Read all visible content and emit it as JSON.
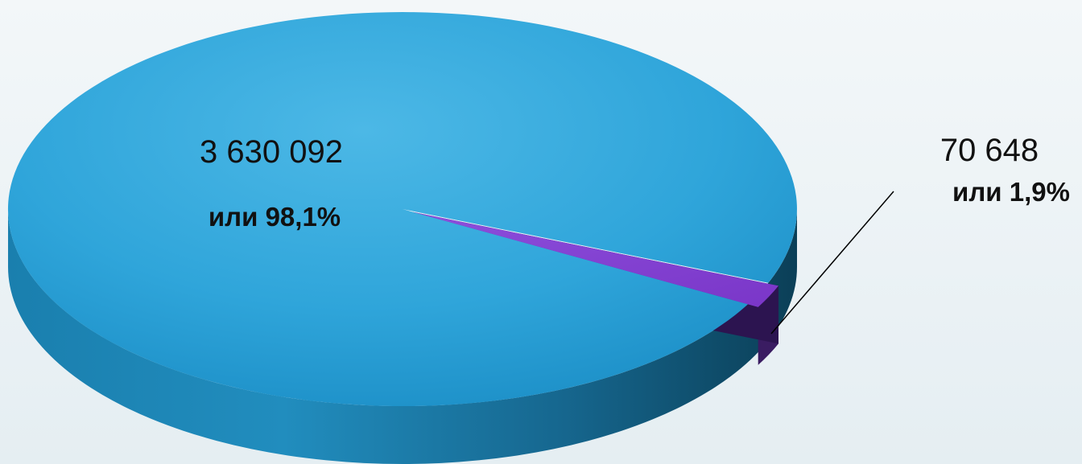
{
  "chart_data": {
    "type": "pie",
    "style": "3d",
    "categories": [
      "",
      ""
    ],
    "values": [
      3630092,
      70648
    ],
    "value_labels": [
      "3 630 092",
      "70 648"
    ],
    "percent_labels": [
      "или 98,1%",
      "или 1,9%"
    ],
    "colors": [
      "#2aa3d6",
      "#7b3fc4"
    ],
    "legend": "none"
  }
}
